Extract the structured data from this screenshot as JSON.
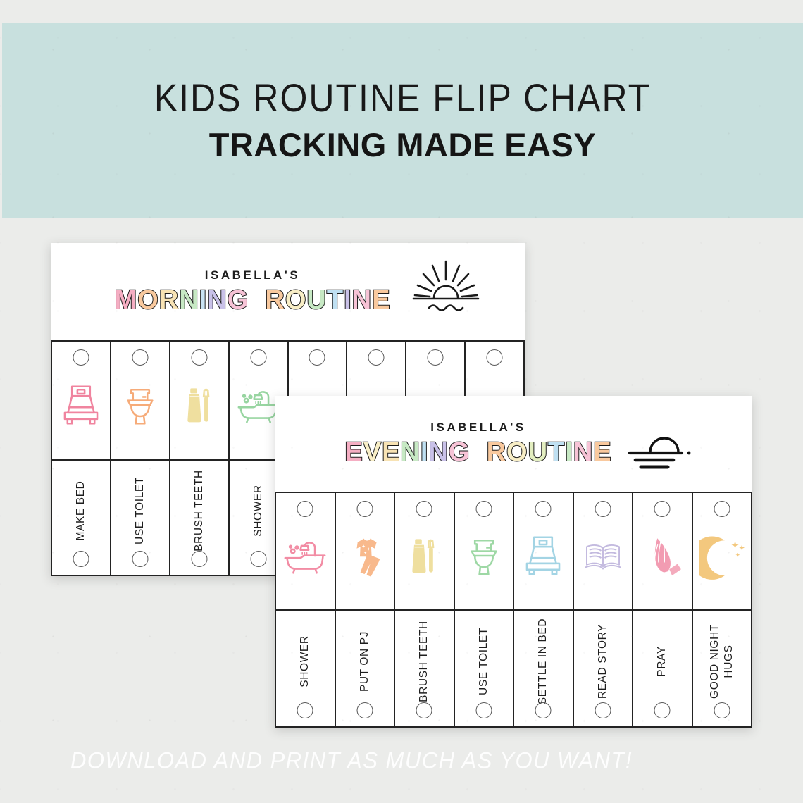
{
  "banner": {
    "title": "KIDS ROUTINE FLIP CHART",
    "subtitle": "TRACKING MADE EASY",
    "bg_color": "#c8e0de"
  },
  "footer": {
    "text": "DOWNLOAD AND PRINT AS MUCH AS YOU WANT!"
  },
  "cards": {
    "morning": {
      "owner": "ISABELLA'S",
      "title": "MORNING ROUTINE",
      "logo": "sunrise-icon",
      "title_letters": [
        {
          "ch": "M",
          "color": "#f5aec3"
        },
        {
          "ch": "O",
          "color": "#f9c99e"
        },
        {
          "ch": "R",
          "color": "#f8e3b4"
        },
        {
          "ch": "N",
          "color": "#c7e9c4"
        },
        {
          "ch": "I",
          "color": "#c9e2f3"
        },
        {
          "ch": "N",
          "color": "#c9c1e8"
        },
        {
          "ch": "G",
          "color": "#f7c3d6"
        },
        {
          "ch": " ",
          "color": ""
        },
        {
          "ch": "R",
          "color": "#f9c99e"
        },
        {
          "ch": "O",
          "color": "#f8eec6"
        },
        {
          "ch": "U",
          "color": "#c7e9c4"
        },
        {
          "ch": "T",
          "color": "#bfe0f2"
        },
        {
          "ch": "I",
          "color": "#c9c1e8"
        },
        {
          "ch": "N",
          "color": "#f7c3d6"
        },
        {
          "ch": "E",
          "color": "#f9c99e"
        }
      ],
      "columns": [
        {
          "label": "MAKE BED",
          "icon": "bed",
          "color": "#f0849f"
        },
        {
          "label": "USE TOILET",
          "icon": "toilet",
          "color": "#f6ab79"
        },
        {
          "label": "BRUSH TEETH",
          "icon": "toothbrush",
          "color": "#efdf9f"
        },
        {
          "label": "SHOWER",
          "icon": "bathtub",
          "color": "#98d5a1"
        },
        {
          "label": "",
          "icon": "clothes-partial",
          "color": "#a9d5e2"
        },
        {
          "label": "",
          "icon": "blob-partial",
          "color": "#b7a7d6"
        },
        {
          "label": "",
          "icon": "breakfast-partial",
          "color": "#ef8fa8"
        },
        {
          "label": "",
          "icon": "bag-partial",
          "color": "#f6ba8b"
        }
      ]
    },
    "evening": {
      "owner": "ISABELLA'S",
      "title": "EVENING ROUTINE",
      "logo": "sunset-icon",
      "title_letters": [
        {
          "ch": "E",
          "color": "#f5aec3"
        },
        {
          "ch": "V",
          "color": "#f8eec6"
        },
        {
          "ch": "E",
          "color": "#f8e3b4"
        },
        {
          "ch": "N",
          "color": "#c7e9c4"
        },
        {
          "ch": "I",
          "color": "#bfe0f2"
        },
        {
          "ch": "N",
          "color": "#c9c1e8"
        },
        {
          "ch": "G",
          "color": "#f7c3d6"
        },
        {
          "ch": " ",
          "color": ""
        },
        {
          "ch": "R",
          "color": "#f9c99e"
        },
        {
          "ch": "O",
          "color": "#f8eec6"
        },
        {
          "ch": "U",
          "color": "#e3eec0"
        },
        {
          "ch": "T",
          "color": "#bfe0f2"
        },
        {
          "ch": "I",
          "color": "#c7e9c4"
        },
        {
          "ch": "N",
          "color": "#f7c3d6"
        },
        {
          "ch": "E",
          "color": "#f9c99e"
        }
      ],
      "columns": [
        {
          "label": "SHOWER",
          "icon": "bathtub",
          "color": "#f28ca4"
        },
        {
          "label": "PUT ON PJ",
          "icon": "pajamas",
          "color": "#f8b98c"
        },
        {
          "label": "BRUSH TEETH",
          "icon": "toothbrush",
          "color": "#efdf9f"
        },
        {
          "label": "USE TOILET",
          "icon": "toilet",
          "color": "#9ed8a5"
        },
        {
          "label": "SETTLE IN BED",
          "icon": "bed",
          "color": "#a3d4e4"
        },
        {
          "label": "READ STORY",
          "icon": "book",
          "color": "#c3badf"
        },
        {
          "label": "PRAY",
          "icon": "praying-hands",
          "color": "#f29cb2"
        },
        {
          "label": "GOOD NIGHT\nHUGS",
          "icon": "moon-stars",
          "color": "#f3c87e"
        }
      ]
    }
  }
}
